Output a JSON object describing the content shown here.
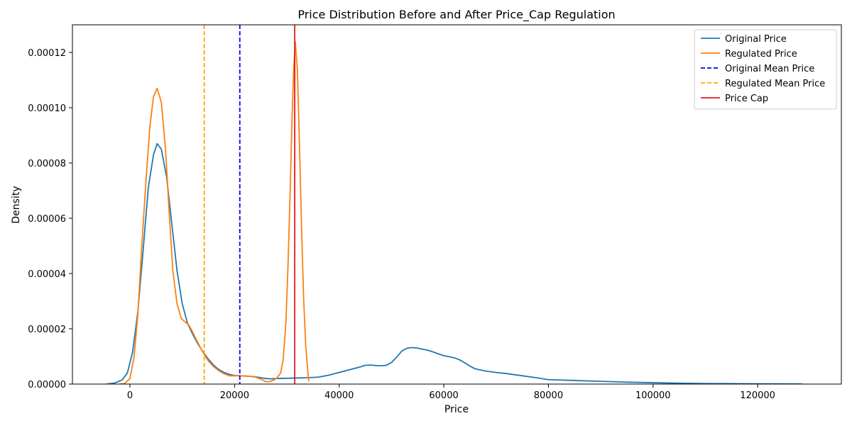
{
  "chart_data": {
    "type": "line",
    "title": "Price Distribution Before and After Price_Cap Regulation",
    "xlabel": "Price",
    "ylabel": "Density",
    "xlim": [
      -11000,
      136000
    ],
    "ylim": [
      0,
      0.00013
    ],
    "x_ticks": [
      0,
      20000,
      40000,
      60000,
      80000,
      100000,
      120000
    ],
    "x_tick_labels": [
      "0",
      "20000",
      "40000",
      "60000",
      "80000",
      "100000",
      "120000"
    ],
    "y_ticks": [
      0,
      2e-05,
      4e-05,
      6e-05,
      8e-05,
      0.0001,
      0.00012
    ],
    "y_tick_labels": [
      "0.00000",
      "0.00002",
      "0.00004",
      "0.00006",
      "0.00008",
      "0.00010",
      "0.00012"
    ],
    "grid": false,
    "legend_position": "top-right",
    "series": [
      {
        "name": "Original Price",
        "color": "#1f77b4",
        "style": "solid",
        "x": [
          -4500,
          -3000,
          -1500,
          -500,
          500,
          1500,
          2500,
          3500,
          4500,
          5200,
          6000,
          7000,
          8000,
          9000,
          10000,
          11000,
          12000,
          13000,
          14000,
          15000,
          16000,
          17000,
          18000,
          19000,
          20000,
          21000,
          22000,
          23000,
          24000,
          25000,
          26000,
          27000,
          28000,
          30000,
          32000,
          34000,
          36000,
          38000,
          40000,
          42000,
          44000,
          45000,
          46000,
          47000,
          48000,
          49000,
          50000,
          51000,
          52000,
          53000,
          54000,
          55000,
          56000,
          57000,
          58000,
          59000,
          60000,
          61000,
          62000,
          63000,
          64000,
          65000,
          66000,
          68000,
          70000,
          72000,
          75000,
          78000,
          80000,
          85000,
          90000,
          95000,
          100000,
          105000,
          110000,
          115000,
          120000,
          125000,
          128500
        ],
        "y": [
          0,
          3e-07,
          1.5e-06,
          4e-06,
          1.15e-05,
          2.6e-05,
          4.8e-05,
          7.1e-05,
          8.3e-05,
          8.7e-05,
          8.5e-05,
          7.5e-05,
          5.8e-05,
          4.1e-05,
          2.9e-05,
          2.2e-05,
          1.8e-05,
          1.45e-05,
          1.15e-05,
          9e-06,
          6.8e-06,
          5.2e-06,
          4.2e-06,
          3.5e-06,
          3.1e-06,
          3e-06,
          2.9e-06,
          2.8e-06,
          2.6e-06,
          2.3e-06,
          2e-06,
          1.9e-06,
          2e-06,
          2.1e-06,
          2.2e-06,
          2.3e-06,
          2.5e-06,
          3.2e-06,
          4.2e-06,
          5.2e-06,
          6.2e-06,
          6.8e-06,
          6.9e-06,
          6.7e-06,
          6.6e-06,
          6.8e-06,
          7.8e-06,
          9.8e-06,
          1.2e-05,
          1.3e-05,
          1.32e-05,
          1.3e-05,
          1.26e-05,
          1.22e-05,
          1.16e-05,
          1.09e-05,
          1.03e-05,
          9.9e-06,
          9.5e-06,
          8.8e-06,
          7.7e-06,
          6.5e-06,
          5.5e-06,
          4.7e-06,
          4.2e-06,
          3.8e-06,
          3e-06,
          2.2e-06,
          1.6e-06,
          1.3e-06,
          1e-06,
          7e-07,
          5e-07,
          3e-07,
          2e-07,
          1.5e-07,
          1e-07,
          5e-08,
          3e-08
        ]
      },
      {
        "name": "Regulated Price",
        "color": "#ff7f0e",
        "style": "solid",
        "x": [
          -2000,
          -1000,
          0,
          800,
          1500,
          2200,
          3000,
          3800,
          4500,
          5200,
          6000,
          6800,
          7500,
          8200,
          9000,
          9800,
          10500,
          11200,
          11800,
          12500,
          13200,
          14000,
          15000,
          16000,
          17000,
          18000,
          19000,
          20000,
          21000,
          22000,
          23000,
          24000,
          25000,
          25800,
          26500,
          27200,
          28000,
          28800,
          29300,
          29800,
          30200,
          30600,
          31000,
          31300,
          31600,
          32000,
          32400,
          32800,
          33200,
          33600,
          34000,
          34200
        ],
        "y": [
          0,
          2e-07,
          2e-06,
          1e-05,
          2.5e-05,
          4.8e-05,
          7.2e-05,
          9.3e-05,
          0.000104,
          0.000107,
          0.000102,
          8.5e-05,
          6.2e-05,
          4.1e-05,
          2.9e-05,
          2.38e-05,
          2.25e-05,
          2.15e-05,
          1.95e-05,
          1.68e-05,
          1.42e-05,
          1.13e-05,
          8.3e-06,
          6.3e-06,
          4.8e-06,
          3.7e-06,
          3e-06,
          3e-06,
          3e-06,
          2.9e-06,
          2.8e-06,
          2.5e-06,
          1.8e-06,
          1e-06,
          8e-07,
          1.2e-06,
          2e-06,
          4e-06,
          9e-06,
          2.2e-05,
          4.2e-05,
          6.8e-05,
          9.7e-05,
          0.000114,
          0.000124,
          0.000114,
          8.7e-05,
          5.7e-05,
          3.1e-05,
          1.4e-05,
          4.5e-06,
          1e-06
        ]
      }
    ],
    "vlines": [
      {
        "name": "Original Mean Price",
        "x": 21000,
        "color": "#0000ff",
        "style": "dashed"
      },
      {
        "name": "Regulated Mean Price",
        "x": 14200,
        "color": "#ffa500",
        "style": "dashed"
      },
      {
        "name": "Price Cap",
        "x": 31500,
        "color": "#e41a1c",
        "style": "solid"
      }
    ],
    "legend": [
      {
        "label": "Original Price",
        "color": "#1f77b4",
        "style": "solid"
      },
      {
        "label": "Regulated Price",
        "color": "#ff7f0e",
        "style": "solid"
      },
      {
        "label": "Original Mean Price",
        "color": "#0000ff",
        "style": "dashed"
      },
      {
        "label": "Regulated Mean Price",
        "color": "#ffa500",
        "style": "dashed"
      },
      {
        "label": "Price Cap",
        "color": "#e41a1c",
        "style": "solid"
      }
    ]
  }
}
